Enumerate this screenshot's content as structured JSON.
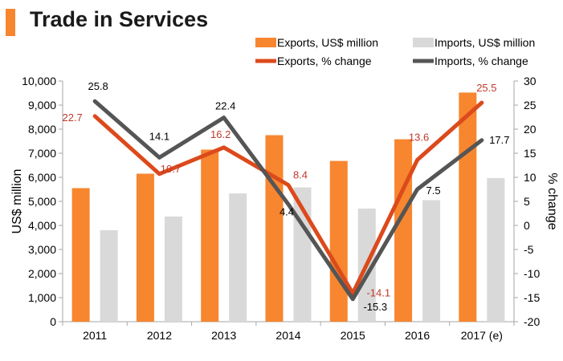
{
  "page": {
    "title": "Trade in Services",
    "accent_color": "#f7862f"
  },
  "chart_data": {
    "type": "bar+line",
    "title": "Trade in Services",
    "categories": [
      "2011",
      "2012",
      "2013",
      "2014",
      "2015",
      "2016",
      "2017 (e)"
    ],
    "ylabel_left": "US$ million",
    "ylabel_right": "% change",
    "ylim_left": [
      0,
      10000
    ],
    "ylim_right": [
      -20,
      30
    ],
    "yticks_left": [
      "0",
      "1,000",
      "2,000",
      "3,000",
      "4,000",
      "5,000",
      "6,000",
      "7,000",
      "8,000",
      "9,000",
      "10,000"
    ],
    "yticks_right": [
      "-20",
      "-15",
      "-10",
      "-5",
      "0",
      "5",
      "10",
      "15",
      "20",
      "25",
      "30"
    ],
    "bars": [
      {
        "name": "Exports, US$ million",
        "color": "#f7862f",
        "values": [
          5550,
          6150,
          7150,
          7750,
          6680,
          7580,
          9520
        ]
      },
      {
        "name": "Imports, US$ million",
        "color": "#d9d9d9",
        "values": [
          3800,
          4370,
          5330,
          5580,
          4700,
          5050,
          5970
        ]
      }
    ],
    "lines": [
      {
        "name": "Exports, % change",
        "color": "#dc4a1c",
        "label_color": "#c0392b",
        "values": [
          22.7,
          10.7,
          16.2,
          8.4,
          -14.1,
          13.6,
          25.5
        ],
        "labels": [
          "22.7",
          "10.7",
          "16.2",
          "8.4",
          "-14.1",
          "13.6",
          "25.5"
        ]
      },
      {
        "name": "Imports, % change",
        "color": "#555555",
        "label_color": "#000000",
        "values": [
          25.8,
          14.1,
          22.4,
          4.4,
          -15.3,
          7.5,
          17.7
        ],
        "labels": [
          "25.8",
          "14.1",
          "22.4",
          "4.4",
          "-15.3",
          "7.5",
          "17.7"
        ]
      }
    ],
    "legend": [
      {
        "label": "Exports, US$ million",
        "kind": "box",
        "color": "#f7862f"
      },
      {
        "label": "Imports, US$ million",
        "kind": "box",
        "color": "#d9d9d9"
      },
      {
        "label": "Exports, % change",
        "kind": "line",
        "color": "#dc4a1c"
      },
      {
        "label": "Imports, % change",
        "kind": "line",
        "color": "#555555"
      }
    ],
    "legend_position": "top-right",
    "grid": false
  }
}
